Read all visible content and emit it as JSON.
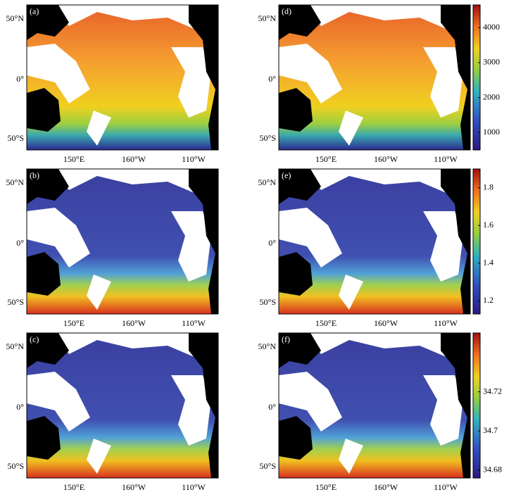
{
  "panels": [
    {
      "label": "(a)"
    },
    {
      "label": "(b)"
    },
    {
      "label": "(c)"
    },
    {
      "label": "(d)"
    },
    {
      "label": "(e)"
    },
    {
      "label": "(f)"
    }
  ],
  "lat_labels": [
    "50°N",
    "0°",
    "50°S"
  ],
  "lon_labels": [
    "150°E",
    "160°W",
    "110°W"
  ],
  "colorbars": [
    {
      "lim": [
        500,
        4650
      ],
      "ticks": [
        1000,
        2000,
        3000,
        4000
      ]
    },
    {
      "lim": [
        1.13,
        1.9
      ],
      "ticks": [
        1.2,
        1.4,
        1.6,
        1.8
      ]
    },
    {
      "lim": [
        34.676,
        34.75
      ],
      "ticks": [
        34.68,
        34.7,
        34.72
      ]
    }
  ]
}
